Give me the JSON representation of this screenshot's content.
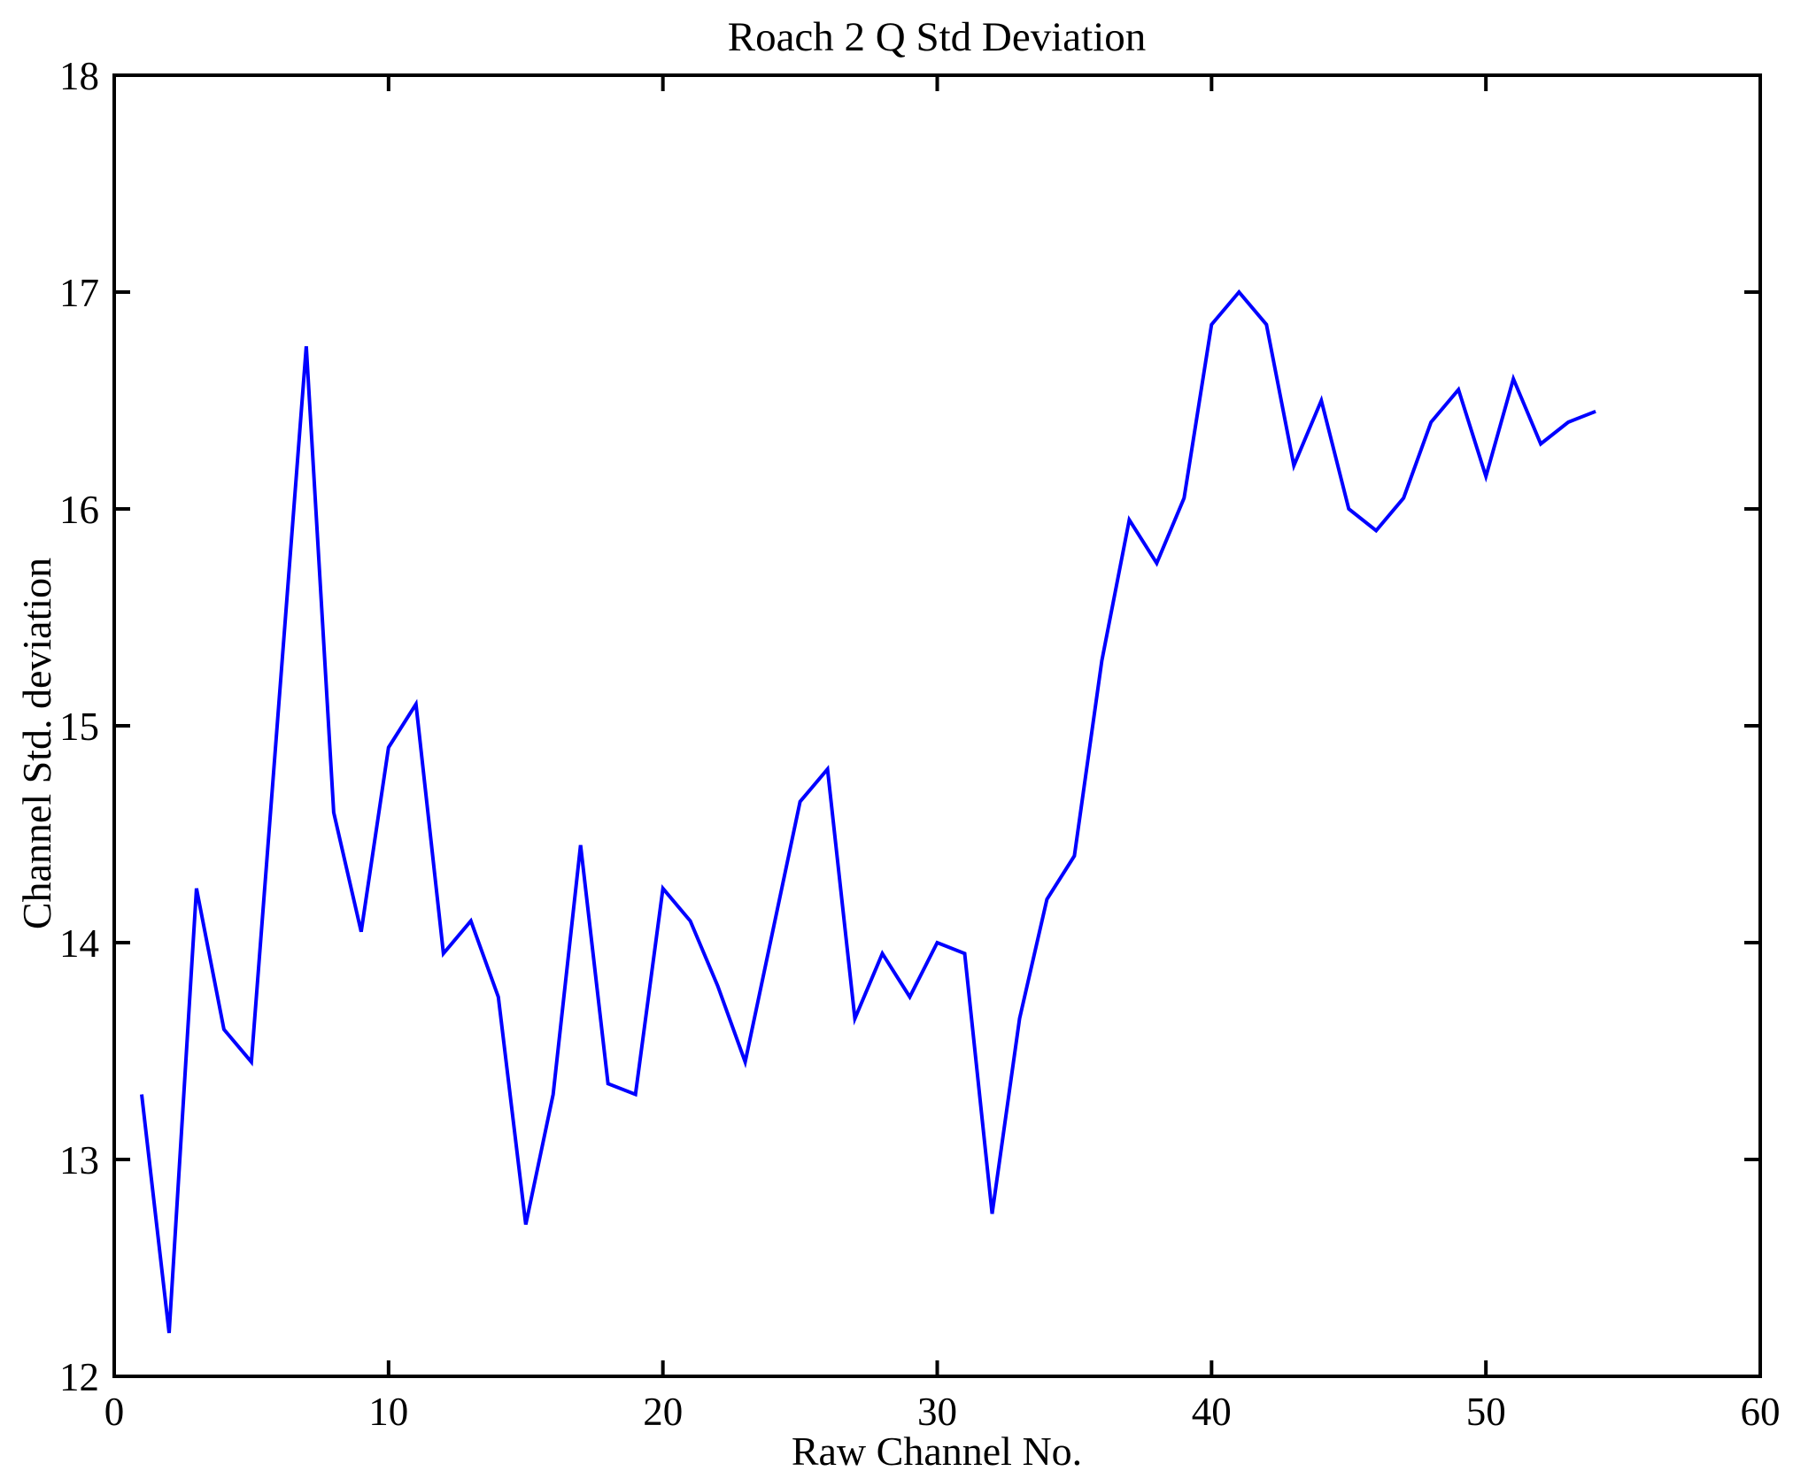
{
  "figure": {
    "background": "#ffffff",
    "axis_color": "#000000"
  },
  "chart_data": {
    "type": "line",
    "title": "Roach 2 Q Std Deviation",
    "xlabel": "Raw Channel No.",
    "ylabel": "Channel Std. deviation",
    "xlim": [
      0,
      60
    ],
    "ylim": [
      12,
      18
    ],
    "x_ticks": [
      0,
      10,
      20,
      30,
      40,
      50,
      60
    ],
    "y_ticks": [
      12,
      13,
      14,
      15,
      16,
      17,
      18
    ],
    "grid": false,
    "legend": "none",
    "line_color": "#0000ff",
    "series_name": "Channel Std. deviation vs Raw Channel No.",
    "x": [
      1,
      2,
      3,
      4,
      5,
      6,
      7,
      8,
      9,
      10,
      11,
      12,
      13,
      14,
      15,
      16,
      17,
      18,
      19,
      20,
      21,
      22,
      23,
      24,
      25,
      26,
      27,
      28,
      29,
      30,
      31,
      32,
      33,
      34,
      35,
      36,
      37,
      38,
      39,
      40,
      41,
      42,
      43,
      44,
      45,
      46,
      47,
      48,
      49,
      50,
      51,
      52,
      53,
      54
    ],
    "values": [
      13.3,
      12.2,
      14.25,
      13.6,
      13.45,
      15.1,
      16.75,
      14.6,
      14.05,
      14.9,
      15.1,
      13.95,
      14.1,
      13.75,
      12.7,
      13.3,
      14.45,
      13.35,
      13.3,
      14.25,
      14.1,
      13.8,
      13.45,
      14.05,
      14.65,
      14.8,
      13.65,
      13.95,
      13.75,
      14.0,
      13.95,
      12.75,
      13.65,
      14.2,
      14.4,
      15.3,
      15.95,
      15.75,
      16.05,
      16.85,
      17.0,
      16.85,
      16.2,
      16.5,
      16.0,
      15.9,
      16.05,
      16.4,
      16.55,
      16.15,
      16.6,
      16.3,
      16.4,
      16.45
    ]
  }
}
